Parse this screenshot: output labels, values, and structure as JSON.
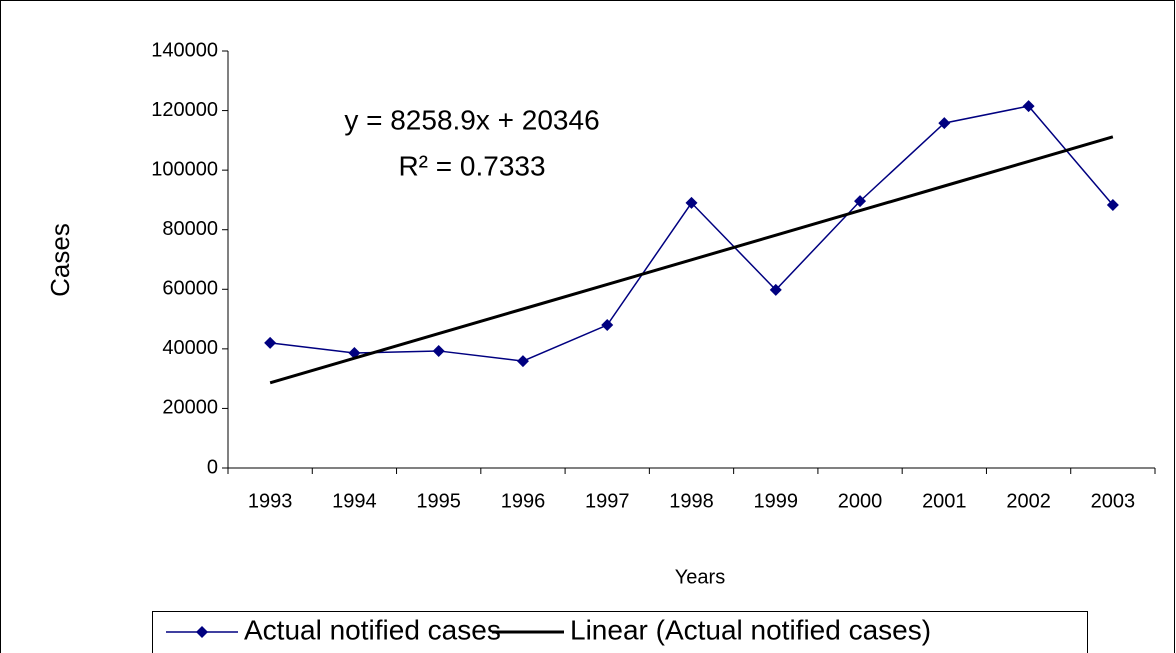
{
  "chart_data": {
    "type": "line",
    "categories": [
      "1993",
      "1994",
      "1995",
      "1996",
      "1997",
      "1998",
      "1999",
      "2000",
      "2001",
      "2002",
      "2003"
    ],
    "series": [
      {
        "name": "Actual notified cases",
        "color": "#000080",
        "values": [
          42000,
          38600,
          39300,
          35900,
          48000,
          89000,
          59800,
          89600,
          115800,
          121500,
          88300
        ]
      },
      {
        "name": "Linear (Actual notified cases)",
        "color": "#000000",
        "values": [
          28604.9,
          36863.8,
          45122.7,
          53381.6,
          61640.5,
          69899.4,
          78158.3,
          86417.2,
          94676.1,
          102935,
          111193.9
        ]
      }
    ],
    "xlabel": "Years",
    "ylabel": "Cases",
    "annotations": [
      "y = 8258.9x + 20346",
      "R² = 0.7333"
    ],
    "ylim": [
      0,
      140000
    ],
    "yticks": [
      0,
      20000,
      40000,
      60000,
      80000,
      100000,
      120000,
      140000
    ],
    "grid": false,
    "legend": "bottom"
  }
}
